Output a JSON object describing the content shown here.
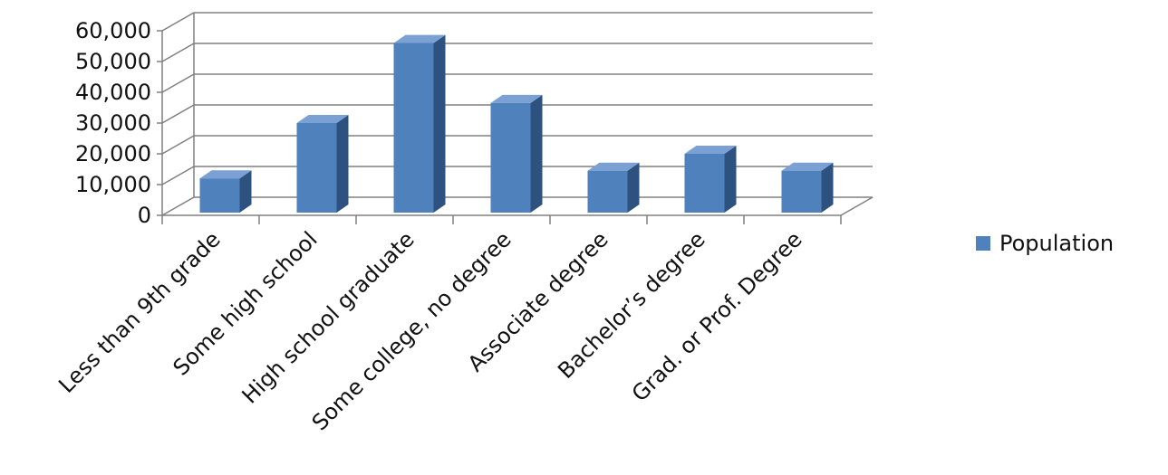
{
  "chart_data": {
    "type": "bar",
    "categories": [
      "Less than 9th grade",
      "Some high school",
      "High school graduate",
      "Some college, no degree",
      "Associate degree",
      "Bachelor’s degree",
      "Grad. or Prof. Degree"
    ],
    "series": [
      {
        "name": "Population",
        "values": [
          12000,
          30000,
          56000,
          36500,
          14500,
          20000,
          14500
        ]
      }
    ],
    "title": "",
    "xlabel": "",
    "ylabel": "",
    "ylim": [
      0,
      60000
    ],
    "yticks": [
      "0",
      "10,000",
      "20,000",
      "30,000",
      "40,000",
      "50,000",
      "60,000"
    ],
    "grid": true,
    "legend_position": "right",
    "style": "3d-column",
    "colors": {
      "front": "#4f81bd",
      "side": "#2e5280",
      "top": "#7ba0d4",
      "grid": "#808080"
    }
  }
}
